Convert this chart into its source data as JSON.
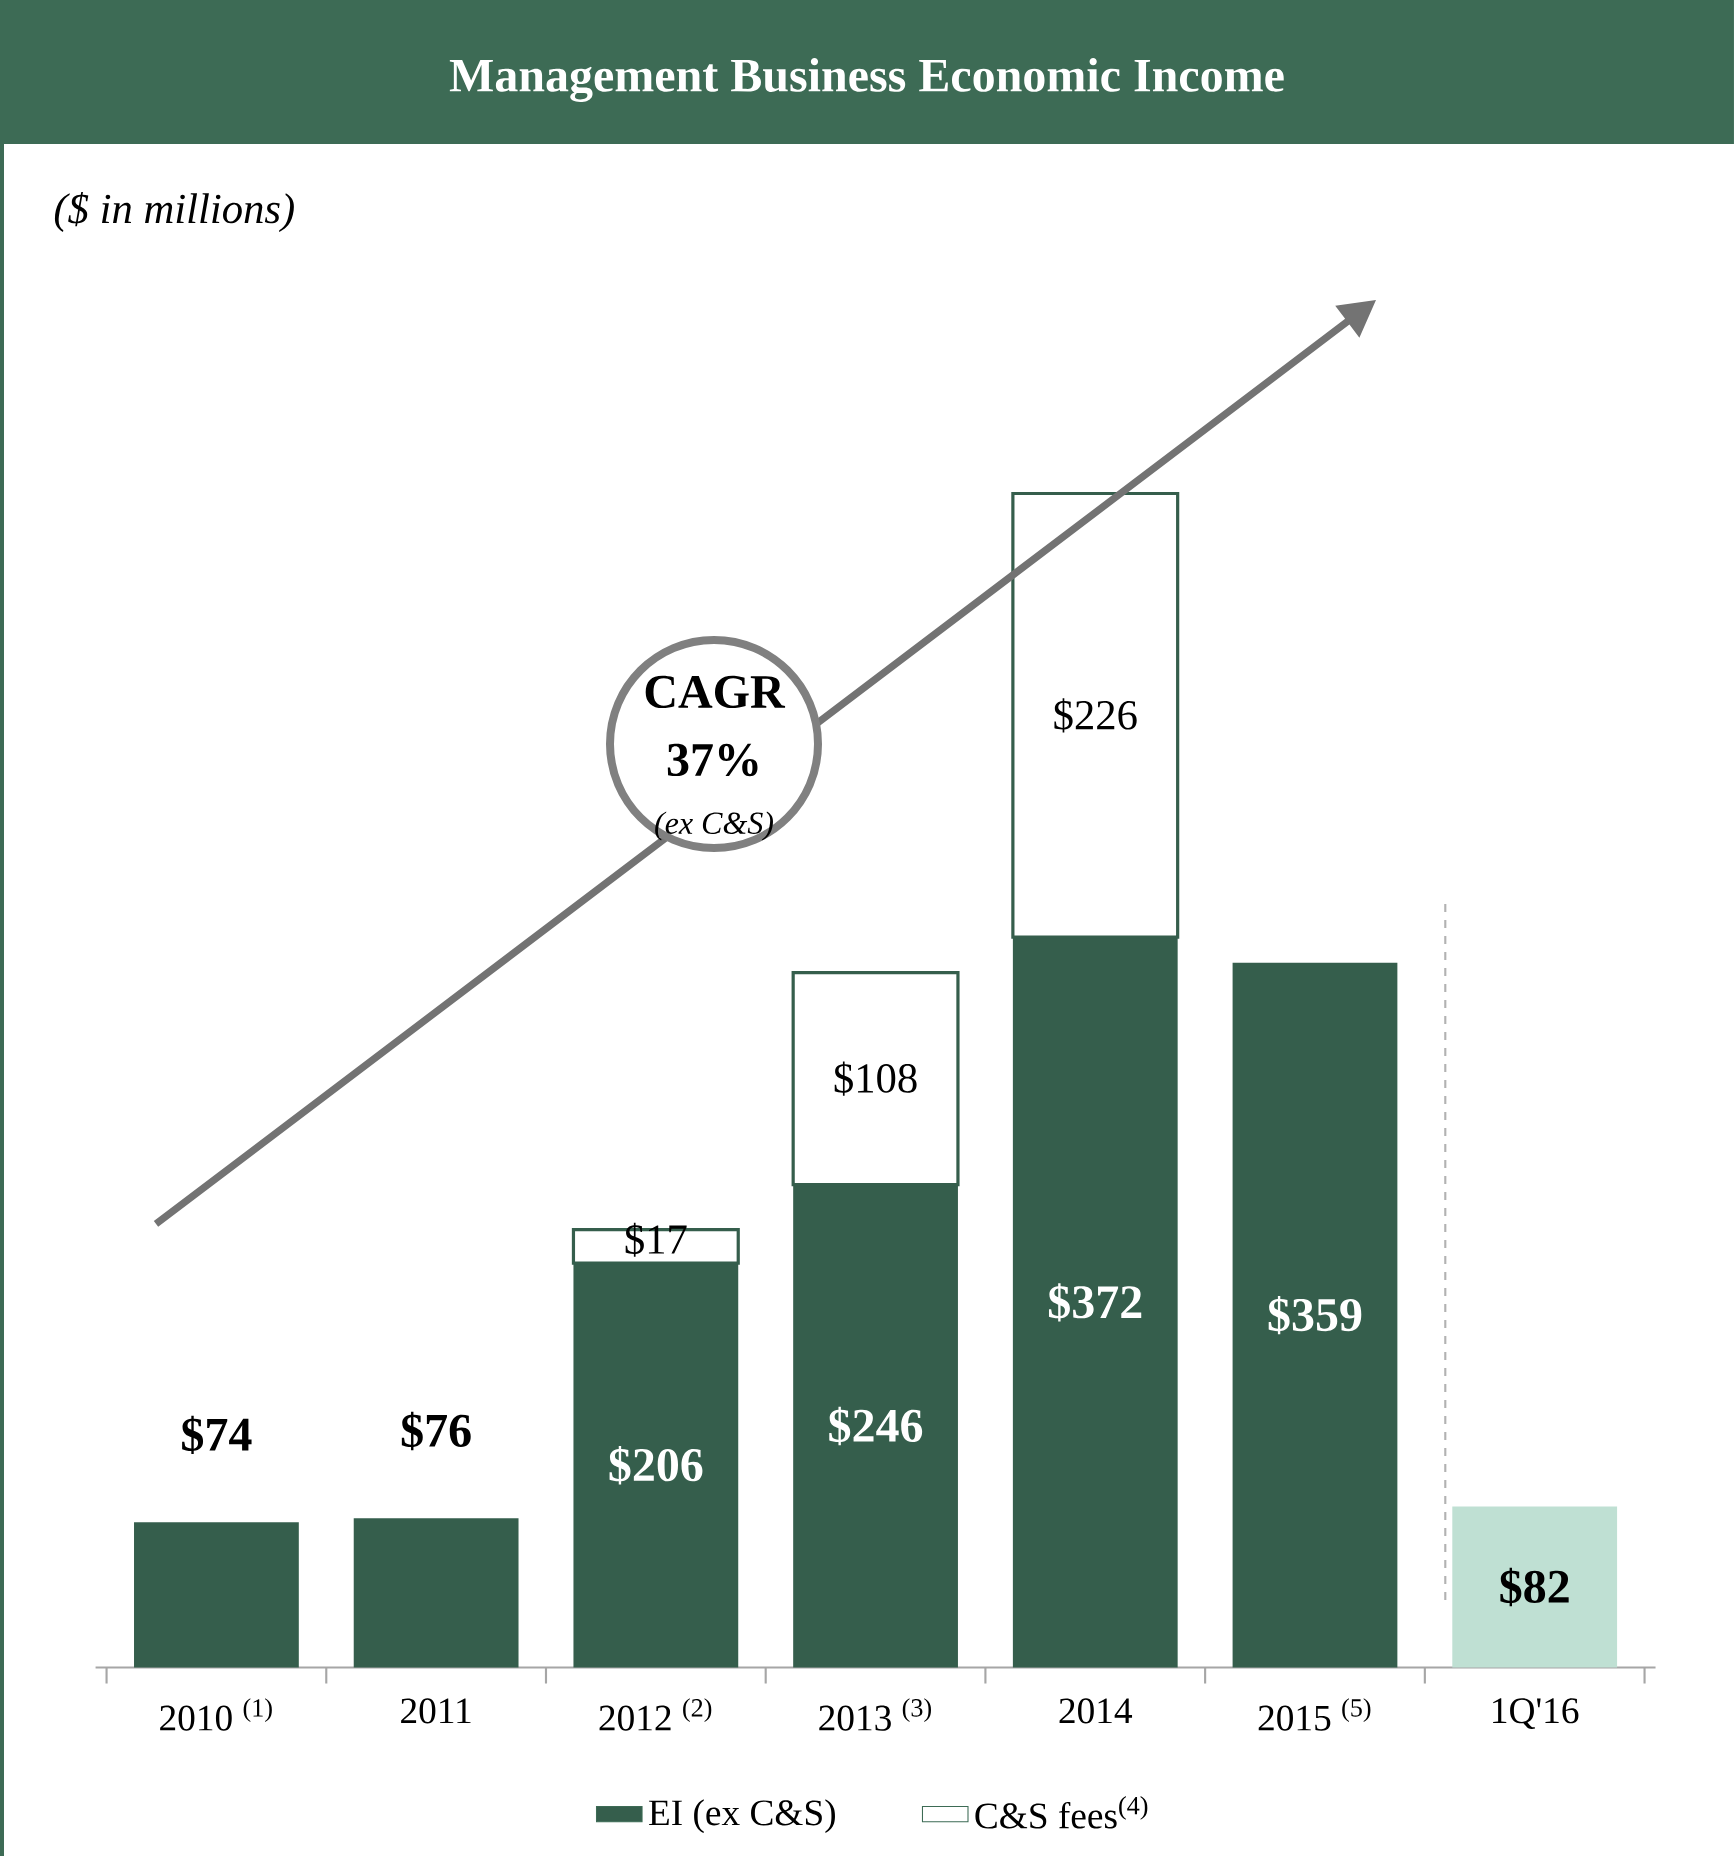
{
  "chart_data": {
    "type": "bar",
    "stacked": true,
    "title": "Management Business Economic Income",
    "subtitle": "($ in millions)",
    "categories": [
      "2010 $^{(1)}$",
      "2011",
      "2012 $^{(2)}$",
      "2013 $^{(3)}$",
      "2014",
      "2015 $^{(5)}$",
      "1Q'16"
    ],
    "series": [
      {
        "name": "EI (ex C&S)",
        "color": "#355e4c",
        "colors": [
          "#355e4c",
          "#355e4c",
          "#355e4c",
          "#355e4c",
          "#355e4c",
          "#355e4c",
          "#bfe0d3"
        ],
        "values": [
          74,
          76,
          206,
          246,
          372,
          359,
          82
        ],
        "value_labels": [
          "$74",
          "$76",
          "$206",
          "$246",
          "$372",
          "$359",
          "$82"
        ]
      },
      {
        "name": "C&S fees$^{(4)}$",
        "color": "#ffffff",
        "values": [
          null,
          null,
          17,
          108,
          226,
          null,
          null
        ],
        "value_labels": [
          null,
          null,
          "$17",
          "$108",
          "$226",
          null,
          null
        ]
      }
    ],
    "annotations": [
      "CAGR",
      "37%",
      "(ex C&S)"
    ],
    "legend": "bottom"
  }
}
